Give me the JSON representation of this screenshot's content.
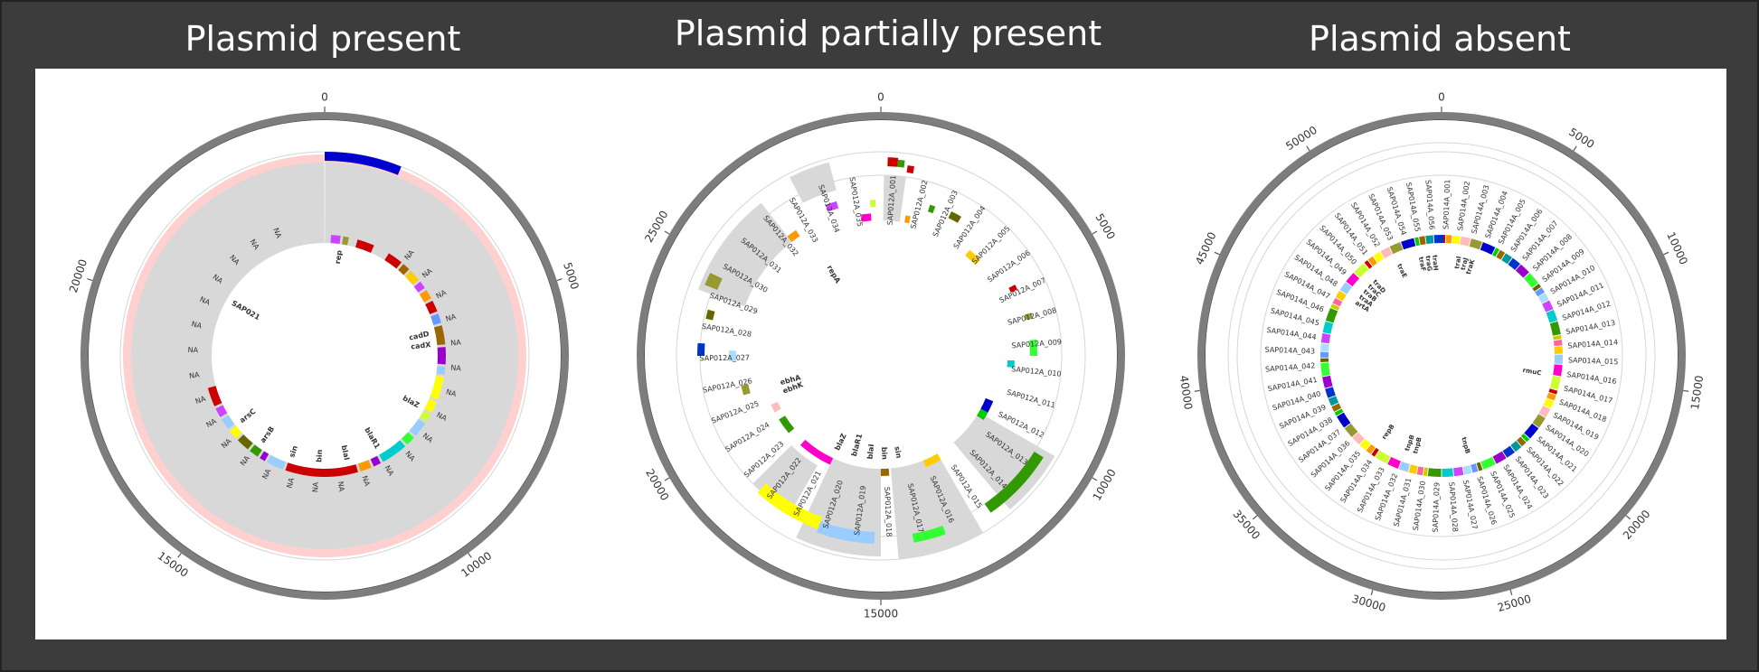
{
  "titles": [
    "Plasmid present",
    "Plasmid partially present",
    "Plasmid absent"
  ],
  "colors": {
    "background": "#3c3c3c",
    "panel": "#ffffff",
    "title_text": "#ffffff",
    "outer_ring": "#8a8a8a",
    "inner_guide": "#d6d6d6",
    "coverage_fill": "#d8d8d8",
    "coverage_edge": "#ffd0d0"
  },
  "plots": [
    {
      "id": "present",
      "ticks": [
        "0",
        "5000",
        "10000",
        "15000",
        "20000"
      ],
      "genes": [
        "SAP021",
        "rep",
        "cadD",
        "cadX",
        "blaZ",
        "blaR1",
        "blaI",
        "bin",
        "sin",
        "arsB",
        "arsC"
      ],
      "na_label": "NA",
      "na_count": 28
    },
    {
      "id": "partial",
      "ticks": [
        "0",
        "5000",
        "10000",
        "15000",
        "20000",
        "25000"
      ],
      "genes": [
        "repA",
        "ebhA",
        "ebhK",
        "blaZ",
        "blaR1",
        "blaI",
        "bin",
        "sin"
      ],
      "loci": [
        "SAP012A_001",
        "SAP012A_002",
        "SAP012A_003",
        "SAP012A_004",
        "SAP012A_005",
        "SAP012A_006",
        "SAP012A_007",
        "SAP012A_008",
        "SAP012A_009",
        "SAP012A_010",
        "SAP012A_011",
        "SAP012A_012",
        "SAP012A_013",
        "SAP012A_014",
        "SAP012A_015",
        "SAP012A_016",
        "SAP012A_017",
        "SAP012A_018",
        "SAP012A_019",
        "SAP012A_020",
        "SAP012A_021",
        "SAP012A_022",
        "SAP012A_023",
        "SAP012A_024",
        "SAP012A_025",
        "SAP012A_026",
        "SAP012A_027",
        "SAP012A_028",
        "SAP012A_029",
        "SAP012A_030",
        "SAP012A_031",
        "SAP012A_032",
        "SAP012A_033",
        "SAP012A_034",
        "SAP012A_035"
      ]
    },
    {
      "id": "absent",
      "ticks": [
        "0",
        "5000",
        "10000",
        "15000",
        "20000",
        "25000",
        "30000",
        "35000",
        "40000",
        "45000",
        "50000"
      ],
      "genes": [
        "traK",
        "traJ",
        "traI",
        "traH",
        "traG",
        "traF",
        "traE",
        "traD",
        "traC",
        "traB",
        "traA",
        "artA",
        "rmuC",
        "repB",
        "tnpB",
        "tnpB",
        "tnpB"
      ],
      "loci": [
        "SAP014A_001",
        "SAP014A_002",
        "SAP014A_003",
        "SAP014A_004",
        "SAP014A_005",
        "SAP014A_006",
        "SAP014A_007",
        "SAP014A_008",
        "SAP014A_009",
        "SAP014A_010",
        "SAP014A_011",
        "SAP014A_012",
        "SAP014A_013",
        "SAP014A_014",
        "SAP014A_015",
        "SAP014A_016",
        "SAP014A_017",
        "SAP014A_018",
        "SAP014A_019",
        "SAP014A_020",
        "SAP014A_021",
        "SAP014A_022",
        "SAP014A_023",
        "SAP014A_024",
        "SAP014A_025",
        "SAP014A_026",
        "SAP014A_027",
        "SAP014A_028",
        "SAP014A_029",
        "SAP014A_030",
        "SAP014A_031",
        "SAP014A_032",
        "SAP014A_033",
        "SAP014A_034",
        "SAP014A_035",
        "SAP014A_036",
        "SAP014A_037",
        "SAP014A_038",
        "SAP014A_039",
        "SAP014A_040",
        "SAP014A_041",
        "SAP014A_042",
        "SAP014A_043",
        "SAP014A_044",
        "SAP014A_045",
        "SAP014A_046",
        "SAP014A_047",
        "SAP014A_048",
        "SAP014A_049",
        "SAP014A_050",
        "SAP014A_051",
        "SAP014A_052",
        "SAP014A_053",
        "SAP014A_054",
        "SAP014A_055",
        "SAP014A_056"
      ]
    }
  ]
}
